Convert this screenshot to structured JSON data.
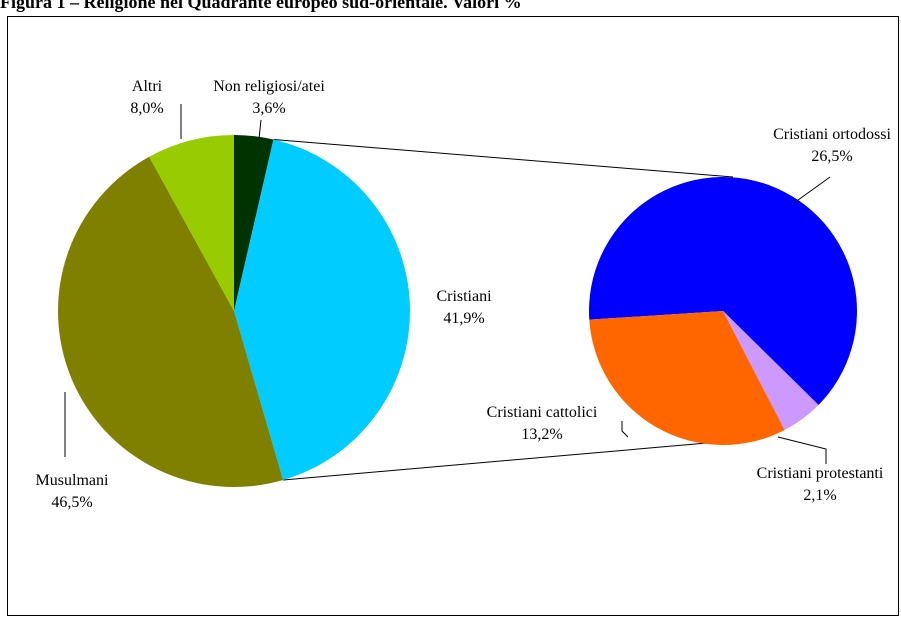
{
  "title": "Figura 1 – Religione nel Quadrante europeo sud-orientale. Valori %",
  "colors": {
    "cristiani": "#00ccff",
    "musulmani": "#808000",
    "altri": "#99cc00",
    "non_religiosi": "#003300",
    "ortodossi": "#0000ff",
    "cattolici": "#ff6600",
    "protestanti": "#cc99ff"
  },
  "chart_data": [
    {
      "type": "pie",
      "slices": [
        {
          "label": "Non religiosi/atei",
          "value": 3.6,
          "value_text": "3,6%",
          "color": "#003300"
        },
        {
          "label": "Cristiani",
          "value": 41.9,
          "value_text": "41,9%",
          "color": "#00ccff"
        },
        {
          "label": "Musulmani",
          "value": 46.5,
          "value_text": "46,5%",
          "color": "#808000"
        },
        {
          "label": "Altri",
          "value": 8.0,
          "value_text": "8,0%",
          "color": "#99cc00"
        }
      ]
    },
    {
      "type": "pie",
      "exploded_from": "Cristiani",
      "slices": [
        {
          "label": "Cristiani ortodossi",
          "value": 26.5,
          "value_text": "26,5%",
          "color": "#0000ff"
        },
        {
          "label": "Cristiani protestanti",
          "value": 2.1,
          "value_text": "2,1%",
          "color": "#cc99ff"
        },
        {
          "label": "Cristiani cattolici",
          "value": 13.2,
          "value_text": "13,2%",
          "color": "#ff6600"
        }
      ]
    }
  ]
}
